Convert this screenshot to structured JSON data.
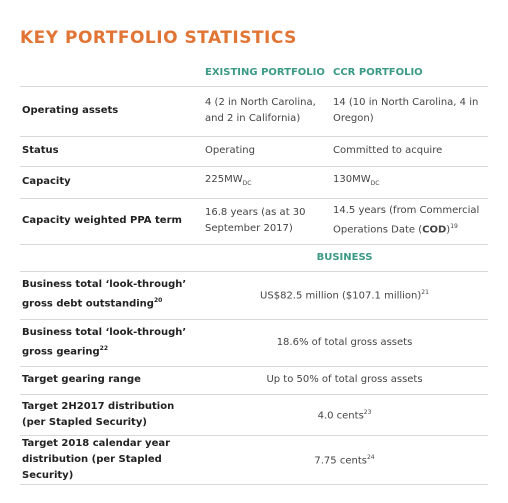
{
  "title": "KEY PORTFOLIO STATISTICS",
  "columns": [
    "EXISTING PORTFOLIO",
    "CCR PORTFOLIO"
  ],
  "portfolio_rows": [
    {
      "label": [
        "Operating assets"
      ],
      "values": [
        [
          "4 (2 in North Carolina, and 2 in California)"
        ],
        [
          "14 (10 in North Carolina, 4 in Oregon)"
        ]
      ]
    },
    {
      "label": [
        "Status"
      ],
      "values": [
        [
          "Operating"
        ],
        [
          "Committed to acquire"
        ]
      ]
    },
    {
      "label": [
        "Capacity"
      ],
      "values": [
        [
          "225MW",
          {
            "sub": "DC"
          }
        ],
        [
          "130MW",
          {
            "sub": "DC"
          }
        ]
      ]
    },
    {
      "label": [
        "Capacity weighted PPA term"
      ],
      "values": [
        [
          "16.8 years (as at 30 September 2017)"
        ],
        [
          "14.5 years (from Commercial Operations Date (",
          {
            "b": "COD"
          },
          ")",
          {
            "sup": "19"
          }
        ]
      ]
    }
  ],
  "business_header": "BUSINESS",
  "business_rows": [
    {
      "label": [
        "Business total ‘look-through’ gross debt outstanding",
        {
          "sup": "20"
        }
      ],
      "value": [
        "US$82.5 million ($107.1 million)",
        {
          "sup": "21"
        }
      ]
    },
    {
      "label": [
        "Business total ‘look-through’ gross gearing",
        {
          "sup": "22"
        }
      ],
      "value": [
        "18.6% of total gross assets"
      ]
    },
    {
      "label": [
        "Target gearing range"
      ],
      "value": [
        "Up to 50% of total gross assets"
      ]
    },
    {
      "label": [
        "Target 2H2017 distribution (per Stapled Security)"
      ],
      "value": [
        "4.0 cents",
        {
          "sup": "23"
        }
      ]
    },
    {
      "label": [
        "Target 2018 calendar year distribution (per Stapled Security)"
      ],
      "value": [
        "7.75 cents",
        {
          "sup": "24"
        }
      ]
    }
  ]
}
